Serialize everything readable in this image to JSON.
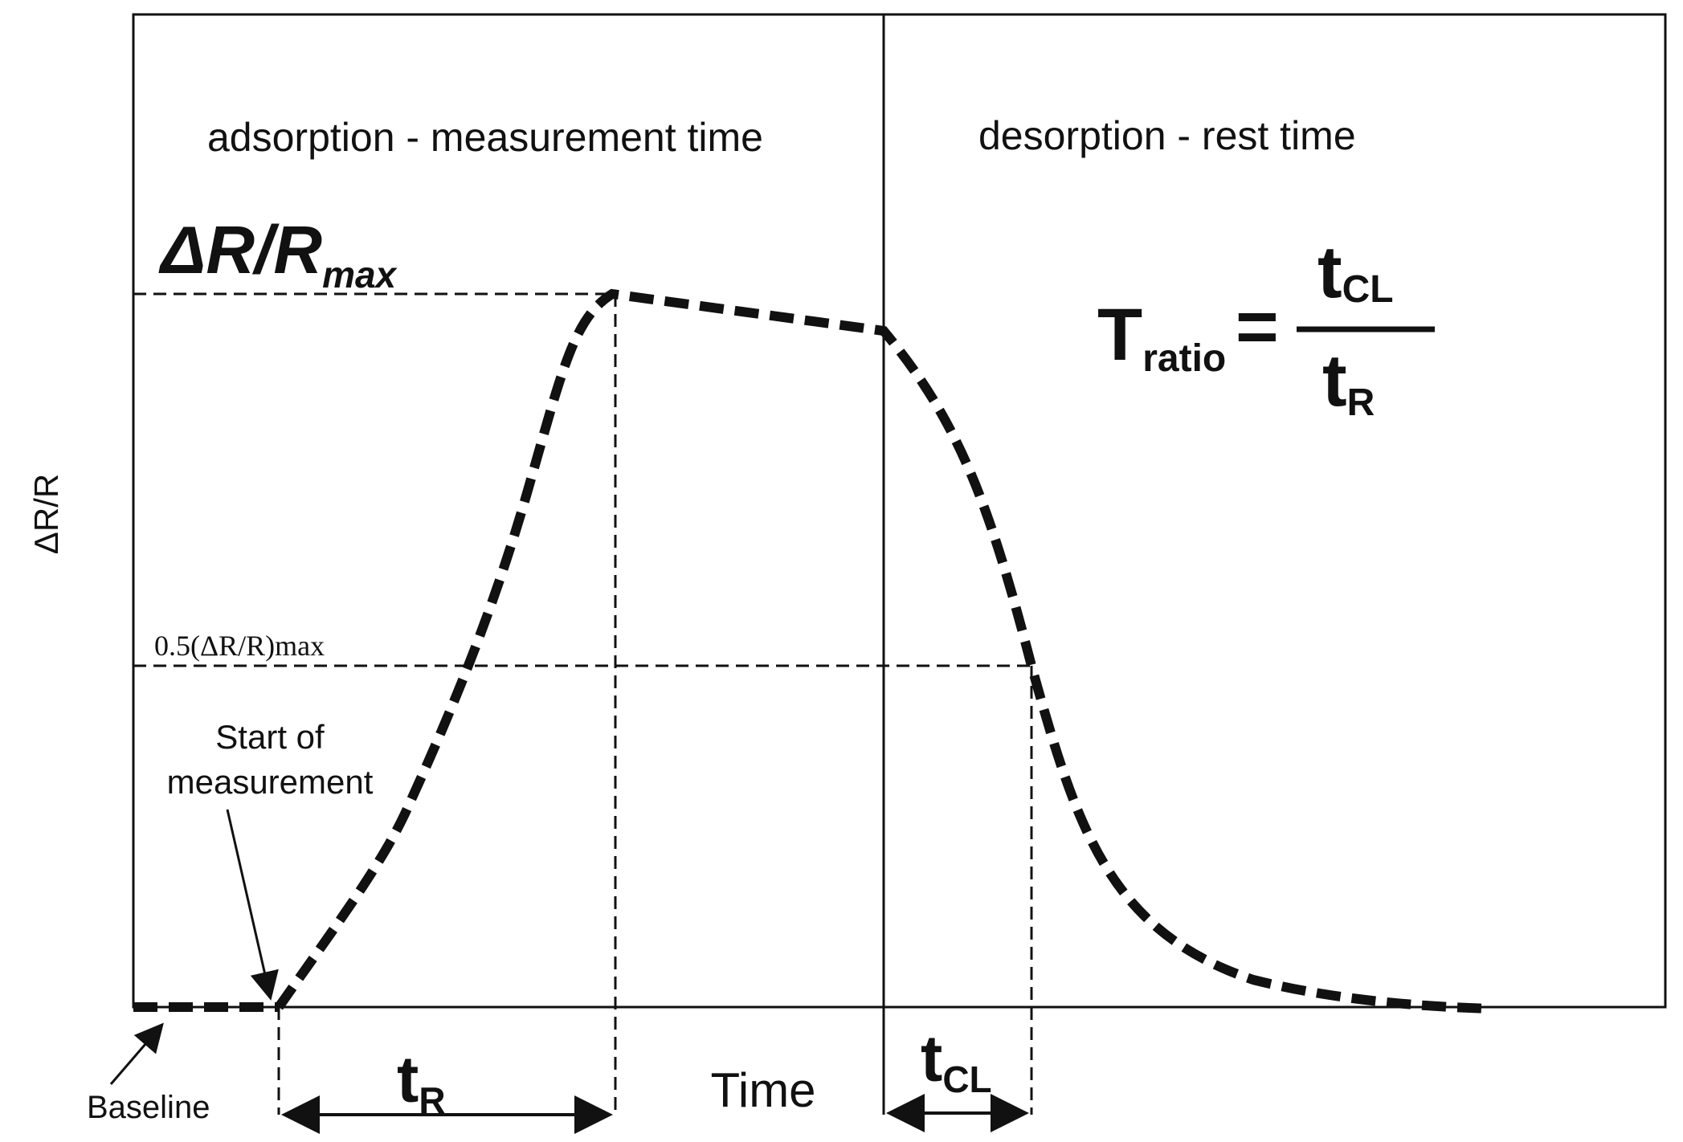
{
  "labels": {
    "adsorption_region": "adsorption - measurement time",
    "desorption_region": "desorption - rest time",
    "y_axis": "ΔR/R",
    "x_axis": "Time",
    "max_label_main": "ΔR/R",
    "max_label_sub": "max",
    "half_max": "0.5(ΔR/R)max",
    "start_line1": "Start of",
    "start_line2": "measurement",
    "baseline": "Baseline",
    "t_r_main": "t",
    "t_r_sub": "R",
    "t_cl_main": "t",
    "t_cl_sub": "CL",
    "formula_lhs_main": "T",
    "formula_lhs_sub": "ratio",
    "formula_eq": "=",
    "formula_num_main": "t",
    "formula_num_sub": "CL",
    "formula_den_main": "t",
    "formula_den_sub": "R"
  },
  "colors": {
    "line": "#111111",
    "background": "#ffffff"
  }
}
